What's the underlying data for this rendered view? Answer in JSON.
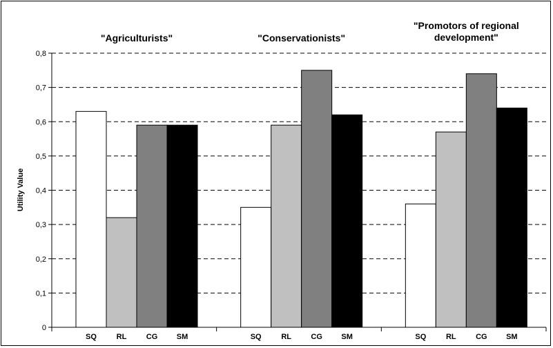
{
  "chart_data": {
    "type": "bar",
    "ylabel": "Utility Value",
    "ylim": [
      0,
      0.8
    ],
    "y_ticks": [
      "0",
      "0,1",
      "0,2",
      "0,3",
      "0,4",
      "0,5",
      "0,6",
      "0,7",
      "0,8"
    ],
    "grid": "horizontal dashed",
    "categories": [
      "SQ",
      "RL",
      "CG",
      "SM"
    ],
    "colors": [
      "#ffffff",
      "#c0c0c0",
      "#808080",
      "#000000"
    ],
    "groups": [
      {
        "title_lines": [
          "\"Agriculturists\""
        ],
        "values": [
          0.63,
          0.32,
          0.59,
          0.59
        ]
      },
      {
        "title_lines": [
          "\"Conservationists\""
        ],
        "values": [
          0.35,
          0.59,
          0.75,
          0.62
        ]
      },
      {
        "title_lines": [
          "\"Promotors of regional",
          "development\""
        ],
        "values": [
          0.36,
          0.57,
          0.74,
          0.64
        ]
      }
    ]
  }
}
